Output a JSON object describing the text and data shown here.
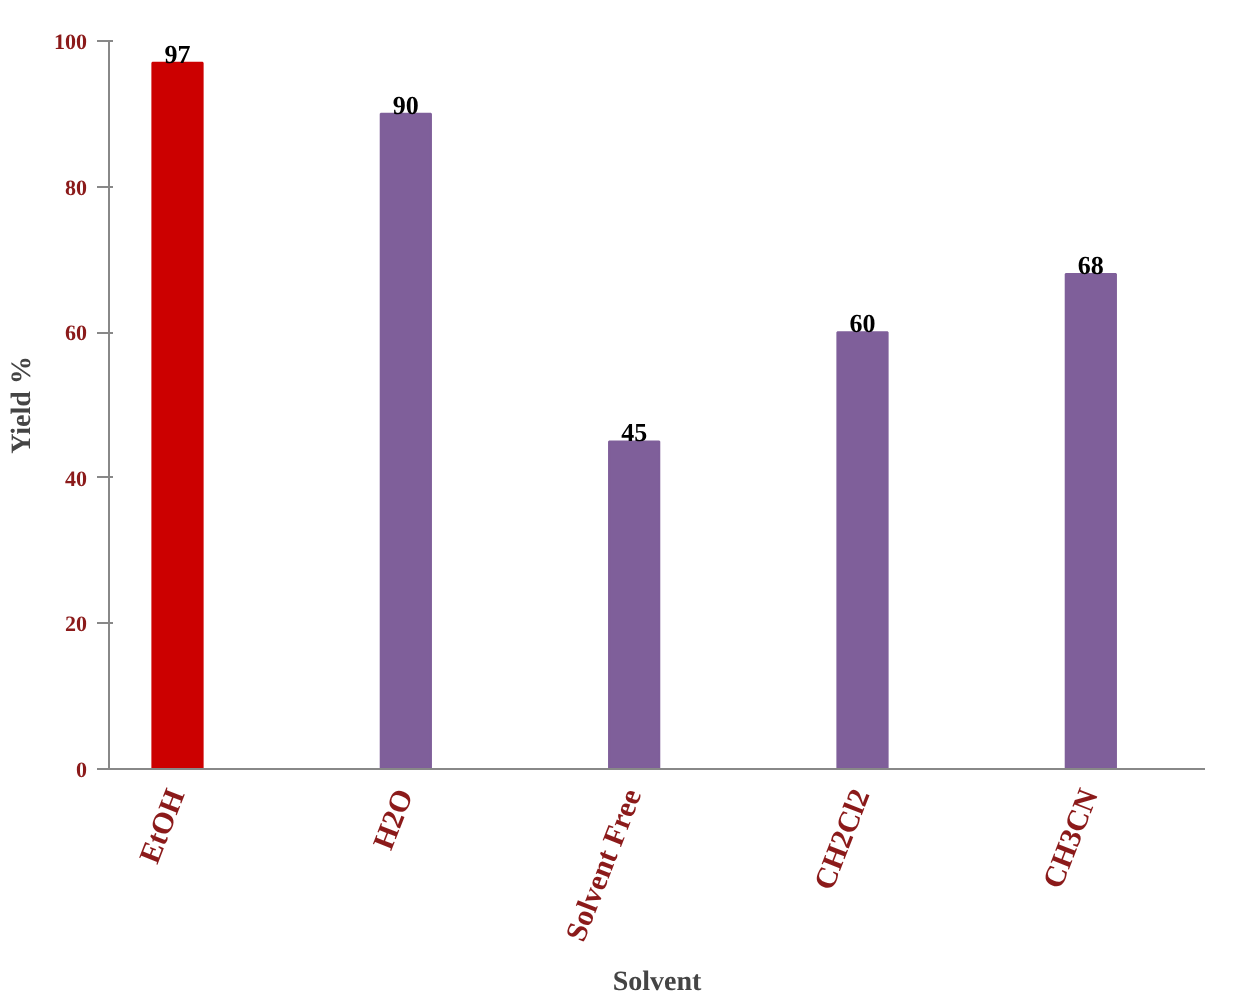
{
  "chart_data": {
    "type": "bar",
    "xlabel": "Solvent",
    "ylabel": "Yield %",
    "categories": [
      "EtOH",
      "H2O",
      "Solvent Free",
      "CH2Cl2",
      "CH3CN"
    ],
    "values": [
      97,
      90,
      45,
      60,
      68
    ],
    "colors": [
      "#cc0000",
      "#7f5f9a",
      "#7f5f9a",
      "#7f5f9a",
      "#7f5f9a"
    ],
    "ylim": [
      0,
      100
    ],
    "yticks": [
      0,
      20,
      40,
      60,
      80,
      100
    ],
    "grid": false,
    "data_labels": true
  }
}
